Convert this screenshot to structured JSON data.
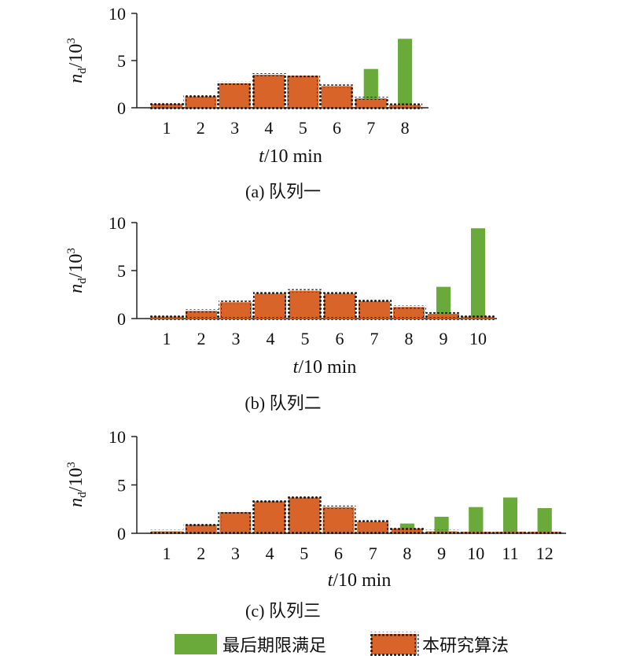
{
  "colors": {
    "green": "#6aaa3a",
    "orange": "#d9642a",
    "dots": "#1a1a1a",
    "axis": "#222222"
  },
  "legend": {
    "green_label": "最后期限满足",
    "orange_label": "本研究算法"
  },
  "chart_data": [
    {
      "type": "bar",
      "caption": "(a) 队列一",
      "ylabel": "n_d/10^3",
      "xlabel": "t/10 min",
      "ylim": [
        0,
        10
      ],
      "yticks": [
        "0",
        "5",
        "10"
      ],
      "categories": [
        "1",
        "2",
        "3",
        "4",
        "5",
        "6",
        "7",
        "8"
      ],
      "series": [
        {
          "name": "最后期限满足",
          "values": [
            0.1,
            0.2,
            0.1,
            0.1,
            0.1,
            0.1,
            4.1,
            7.3
          ]
        },
        {
          "name": "本研究算法",
          "values": [
            0.4,
            1.2,
            2.6,
            3.5,
            3.4,
            2.3,
            1.0,
            0.3
          ]
        }
      ]
    },
    {
      "type": "bar",
      "caption": "(b) 队列二",
      "ylabel": "n_d/10^3",
      "xlabel": "t/10 min",
      "ylim": [
        0,
        10
      ],
      "yticks": [
        "0",
        "5",
        "10"
      ],
      "categories": [
        "1",
        "2",
        "3",
        "4",
        "5",
        "6",
        "7",
        "8",
        "9",
        "10"
      ],
      "series": [
        {
          "name": "最后期限满足",
          "values": [
            0.05,
            0.1,
            0.1,
            0.1,
            0.1,
            0.2,
            0.4,
            1.2,
            3.3,
            9.4
          ]
        },
        {
          "name": "本研究算法",
          "values": [
            0.2,
            0.8,
            1.7,
            2.6,
            2.9,
            2.6,
            1.8,
            1.2,
            0.5,
            0.2
          ]
        }
      ]
    },
    {
      "type": "bar",
      "caption": "(c) 队列三",
      "ylabel": "n_d/10^3",
      "xlabel": "t/10 min",
      "ylim": [
        0,
        10
      ],
      "yticks": [
        "0",
        "5",
        "10"
      ],
      "categories": [
        "1",
        "2",
        "3",
        "4",
        "5",
        "6",
        "7",
        "8",
        "9",
        "10",
        "11",
        "12"
      ],
      "series": [
        {
          "name": "最后期限满足",
          "values": [
            0.05,
            0.1,
            0.1,
            0.1,
            0.1,
            0.2,
            0.6,
            1.0,
            1.7,
            2.7,
            3.7,
            2.6
          ]
        },
        {
          "name": "本研究算法",
          "values": [
            0.2,
            0.9,
            2.2,
            3.3,
            3.7,
            2.7,
            1.2,
            0.5,
            0.2,
            0.1,
            0.1,
            0.1
          ]
        }
      ]
    }
  ]
}
